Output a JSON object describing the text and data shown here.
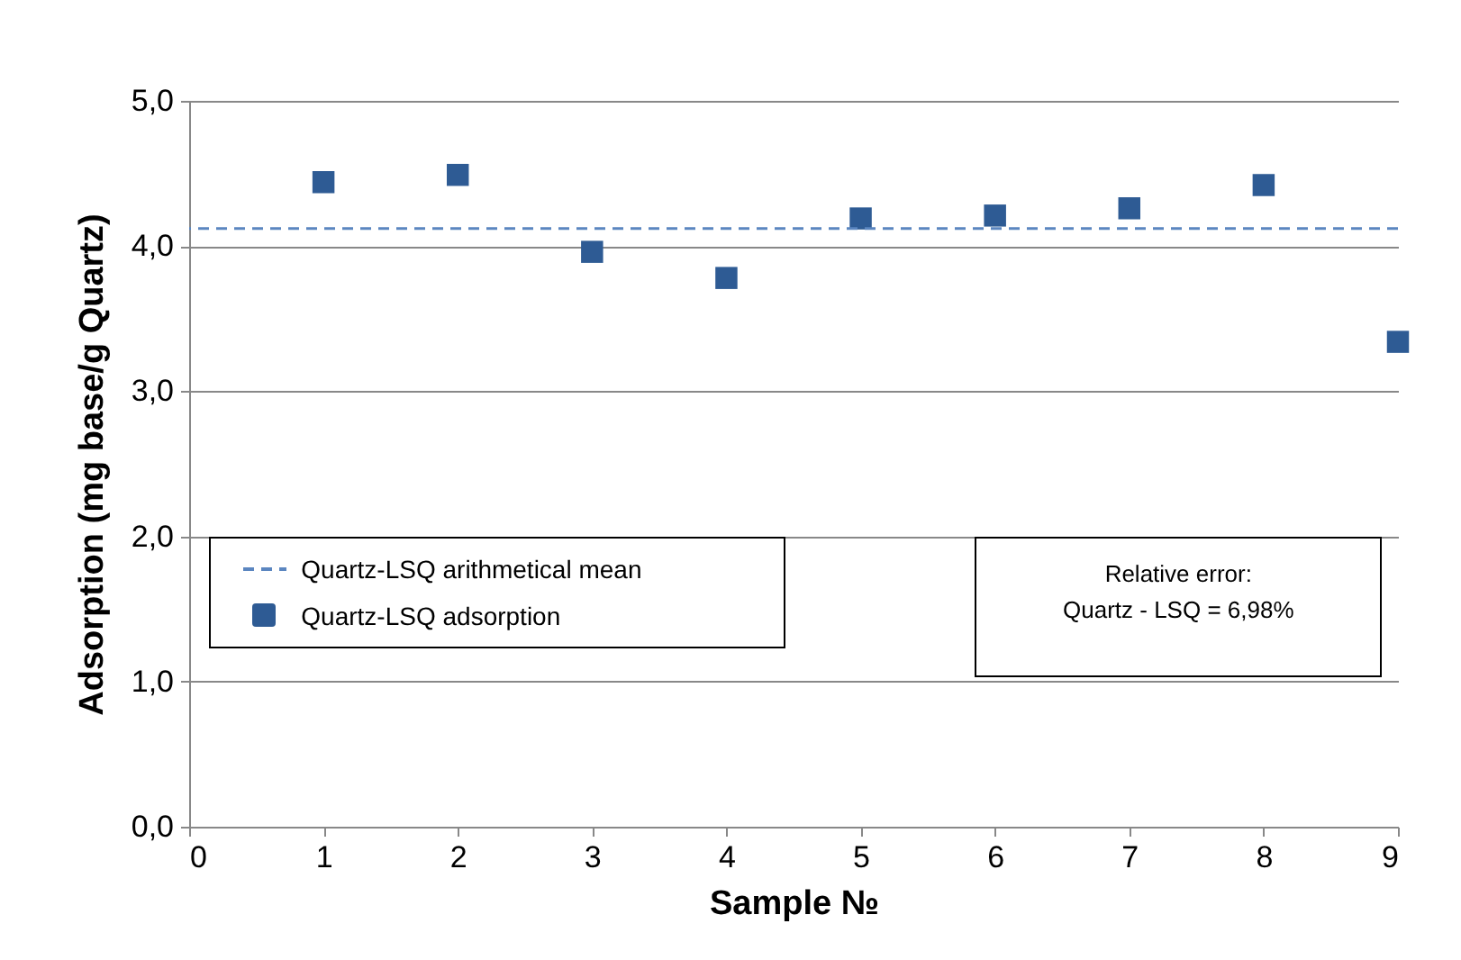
{
  "chart_data": {
    "type": "scatter",
    "xlabel": "Sample №",
    "ylabel": "Adsorption (mg base/g Quartz)",
    "x": [
      1,
      2,
      3,
      4,
      5,
      6,
      7,
      8,
      9
    ],
    "series": [
      {
        "name": "Quartz-LSQ adsorption",
        "color": "#2e5b94",
        "values": [
          4.44,
          4.49,
          3.96,
          3.78,
          4.19,
          4.21,
          4.26,
          4.42,
          3.34
        ]
      }
    ],
    "xlim": [
      0,
      9
    ],
    "xticks": [
      0,
      1,
      2,
      3,
      4,
      5,
      6,
      7,
      8,
      9
    ],
    "ylim": [
      0,
      5
    ],
    "yticks": [
      {
        "value": 0,
        "label": "0,0"
      },
      {
        "value": 1,
        "label": "1,0"
      },
      {
        "value": 2,
        "label": "2,0"
      },
      {
        "value": 3,
        "label": "3,0"
      },
      {
        "value": 4,
        "label": "4,0"
      },
      {
        "value": 5,
        "label": "5,0"
      }
    ],
    "ref_lines": [
      {
        "axis": "y",
        "value": 4.12,
        "label": "Quartz-LSQ arithmetical mean",
        "color": "#5b86c0",
        "line_style": "dashed"
      }
    ],
    "annotations": [
      "Relative error:\nQuartz - LSQ = 6,98%"
    ],
    "marker": "square",
    "grid": "y",
    "legend": "bottom left"
  }
}
